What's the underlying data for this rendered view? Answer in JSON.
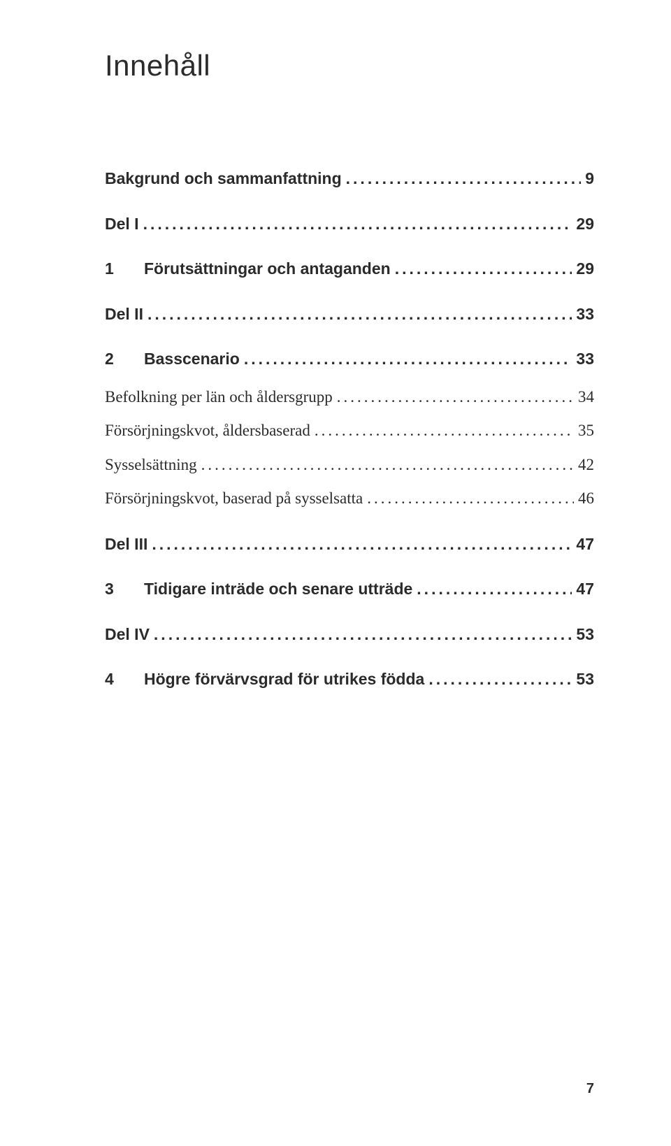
{
  "title": "Innehåll",
  "page_number": "7",
  "colors": {
    "background": "#ffffff",
    "text": "#2b2b2b"
  },
  "typography": {
    "title_font": "Arial",
    "title_size_pt": 32,
    "bold_font": "Arial",
    "body_font": "Georgia",
    "body_size_pt": 17
  },
  "entries": [
    {
      "num": "",
      "label": "Bakgrund och sammanfattning",
      "page": "9",
      "bold": true,
      "sub": false
    },
    {
      "num": "",
      "label": "Del I",
      "page": "29",
      "bold": true,
      "sub": false
    },
    {
      "num": "1",
      "label": "Förutsättningar och antaganden",
      "page": "29",
      "bold": true,
      "sub": false
    },
    {
      "num": "",
      "label": "Del II",
      "page": "33",
      "bold": true,
      "sub": false
    },
    {
      "num": "2",
      "label": "Basscenario",
      "page": "33",
      "bold": true,
      "sub": false
    },
    {
      "num": "",
      "label": "Befolkning per län och åldersgrupp",
      "page": "34",
      "bold": false,
      "sub": true
    },
    {
      "num": "",
      "label": "Försörjningskvot, åldersbaserad",
      "page": "35",
      "bold": false,
      "sub": true
    },
    {
      "num": "",
      "label": "Sysselsättning",
      "page": "42",
      "bold": false,
      "sub": true
    },
    {
      "num": "",
      "label": "Försörjningskvot, baserad på sysselsatta",
      "page": "46",
      "bold": false,
      "sub": true
    },
    {
      "num": "",
      "label": "Del III",
      "page": "47",
      "bold": true,
      "sub": false
    },
    {
      "num": "3",
      "label": "Tidigare inträde och senare utträde",
      "page": "47",
      "bold": true,
      "sub": false
    },
    {
      "num": "",
      "label": "Del IV",
      "page": "53",
      "bold": true,
      "sub": false
    },
    {
      "num": "4",
      "label": "Högre förvärvsgrad för utrikes födda",
      "page": "53",
      "bold": true,
      "sub": false
    }
  ]
}
